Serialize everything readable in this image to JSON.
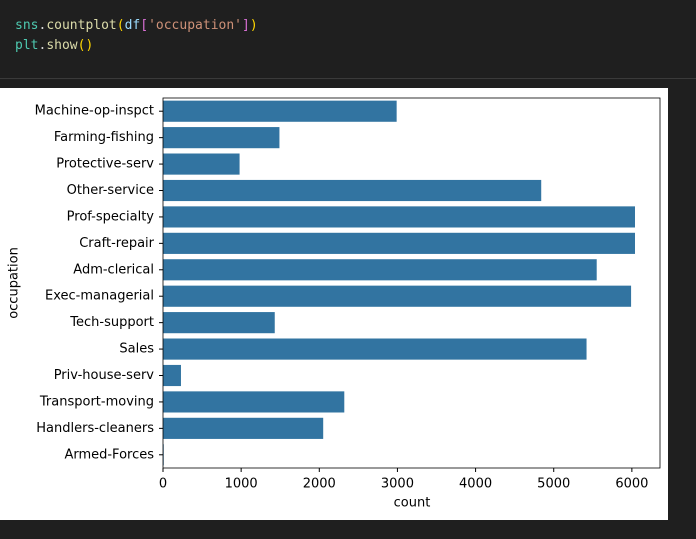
{
  "code": {
    "lines": [
      [
        "sns",
        ".",
        "countplot",
        "(",
        "df",
        "[",
        "'occupation'",
        "]",
        ")"
      ],
      [
        "plt",
        ".",
        "show",
        "()"
      ]
    ]
  },
  "chart_data": {
    "type": "barh",
    "x_label": "count",
    "y_label": "occupation",
    "categories": [
      "Machine-op-inspct",
      "Farming-fishing",
      "Protective-serv",
      "Other-service",
      "Prof-specialty",
      "Craft-repair",
      "Adm-clerical",
      "Exec-managerial",
      "Tech-support",
      "Sales",
      "Priv-house-serv",
      "Transport-moving",
      "Handlers-cleaners",
      "Armed-Forces"
    ],
    "values": [
      2990,
      1490,
      980,
      4840,
      6040,
      6040,
      5550,
      5990,
      1430,
      5420,
      230,
      2320,
      2050,
      9
    ],
    "color": "#3274a1",
    "xlim": [
      0,
      6360
    ],
    "xticks": [
      0,
      1000,
      2000,
      3000,
      4000,
      5000,
      6000
    ]
  }
}
